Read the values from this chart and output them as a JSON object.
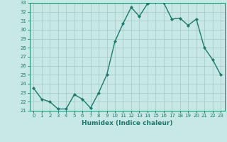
{
  "x": [
    0,
    1,
    2,
    3,
    4,
    5,
    6,
    7,
    8,
    9,
    10,
    11,
    12,
    13,
    14,
    15,
    16,
    17,
    18,
    19,
    20,
    21,
    22,
    23
  ],
  "y": [
    23.5,
    22.3,
    22.0,
    21.2,
    21.2,
    22.8,
    22.3,
    21.3,
    23.0,
    25.0,
    28.7,
    30.7,
    32.5,
    31.5,
    32.9,
    33.1,
    33.0,
    31.2,
    31.3,
    30.5,
    31.2,
    28.0,
    26.7,
    25.0
  ],
  "line_color": "#1a7a6e",
  "marker": "D",
  "marker_size": 2,
  "bg_color": "#c8e8e5",
  "grid_color": "#a0c8c4",
  "xlabel": "Humidex (Indice chaleur)",
  "xlim": [
    -0.5,
    23.5
  ],
  "ylim": [
    21,
    33
  ],
  "yticks": [
    21,
    22,
    23,
    24,
    25,
    26,
    27,
    28,
    29,
    30,
    31,
    32,
    33
  ],
  "xticks": [
    0,
    1,
    2,
    3,
    4,
    5,
    6,
    7,
    8,
    9,
    10,
    11,
    12,
    13,
    14,
    15,
    16,
    17,
    18,
    19,
    20,
    21,
    22,
    23
  ],
  "xlabel_fontsize": 6.5,
  "tick_fontsize": 5,
  "line_width": 1.0
}
